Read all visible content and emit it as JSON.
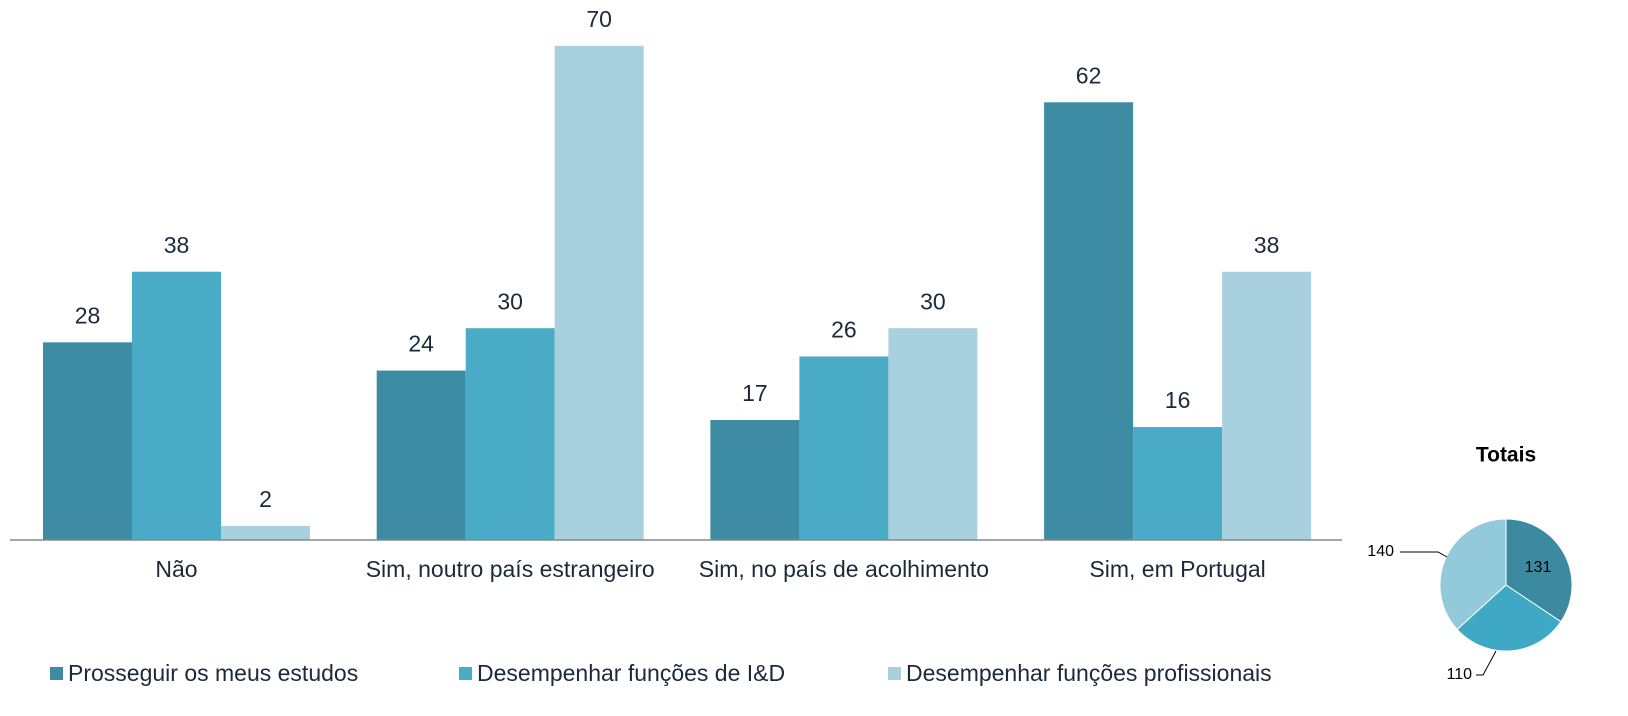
{
  "chart_data": [
    {
      "type": "bar",
      "categories": [
        "Não",
        "Sim, noutro país estrangeiro",
        "Sim, no país de acolhimento",
        "Sim, em Portugal"
      ],
      "series": [
        {
          "name": "Prosseguir os meus estudos",
          "color": "#3d8ca3",
          "values": [
            28,
            24,
            17,
            62
          ]
        },
        {
          "name": "Desempenhar funções de I&D",
          "color": "#4aabc6",
          "values": [
            38,
            30,
            26,
            16
          ]
        },
        {
          "name": "Desempenhar funções profissionais",
          "color": "#a9d0de",
          "values": [
            2,
            70,
            30,
            38
          ]
        }
      ]
    },
    {
      "type": "pie",
      "title": "Totais",
      "values": [
        131,
        110,
        140
      ],
      "colors": [
        "#3b8aa0",
        "#3ea8c5",
        "#92cadb"
      ]
    }
  ]
}
